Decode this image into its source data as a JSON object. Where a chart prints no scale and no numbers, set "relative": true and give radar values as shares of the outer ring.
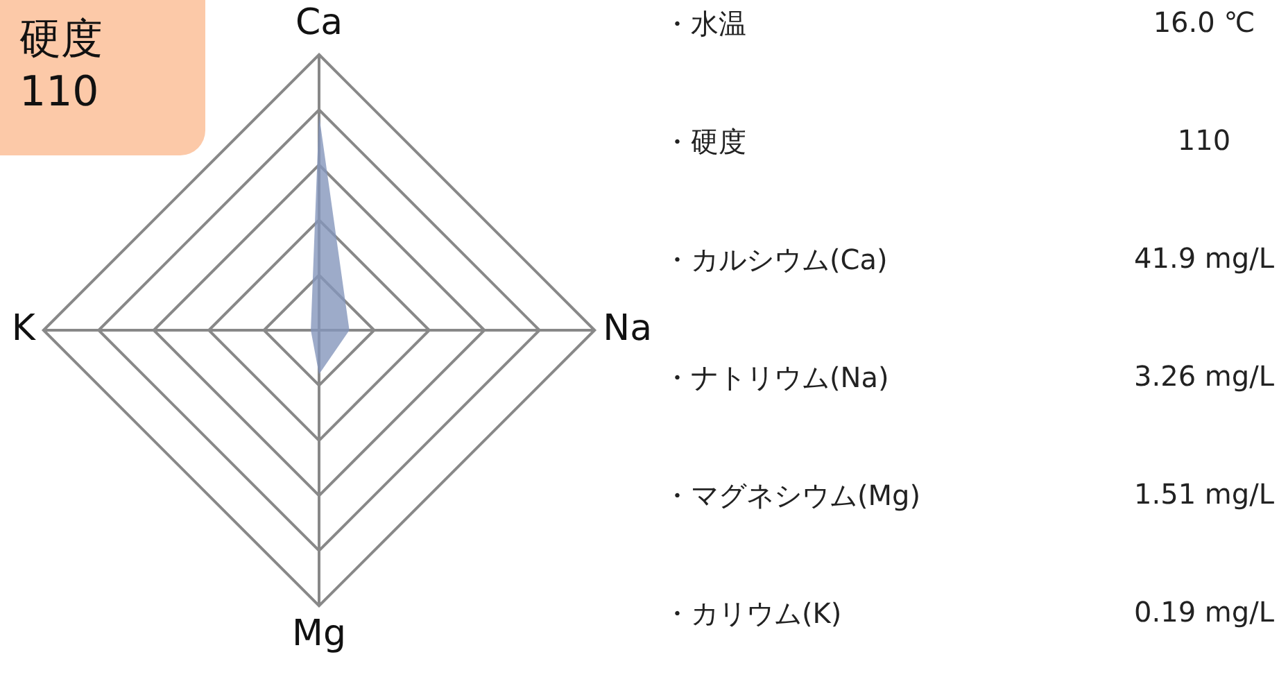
{
  "chart_data": {
    "type": "radar",
    "title": "硬度",
    "subtitle": "110",
    "relative": true,
    "categories": [
      "Ca",
      "Na",
      "Mg",
      "K"
    ],
    "series": [
      {
        "color": "#8496bb",
        "values": [
          0.78,
          0.11,
          0.16,
          0.03
        ]
      }
    ],
    "legend": false,
    "annotations": [
      "・水温",
      "16.0 ℃",
      "・硬度",
      "110",
      "・カルシウム(Ca)",
      "41.9 mg/L",
      "・ナトリウム(Na)",
      "3.26 mg/L",
      "・マグネシウム(Mg)",
      "1.51 mg/L",
      "・カリウム(K)",
      "0.19 mg/L"
    ]
  }
}
